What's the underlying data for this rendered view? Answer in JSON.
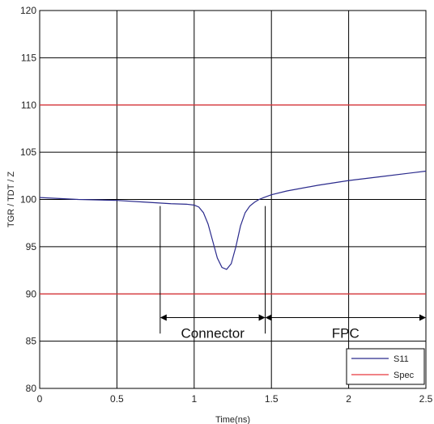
{
  "chart_data": {
    "type": "line",
    "title": "",
    "xlabel": "Time(ns)",
    "ylabel": "TGR / TDT / Z",
    "xlim": [
      0,
      2.5
    ],
    "ylim": [
      80,
      120
    ],
    "x_ticks": [
      "0",
      "0.5",
      "1",
      "1.5",
      "2",
      "2.5"
    ],
    "y_ticks": [
      "80",
      "85",
      "90",
      "95",
      "100",
      "105",
      "110",
      "115",
      "120"
    ],
    "grid": false,
    "legend_position": "bottom-right",
    "series": [
      {
        "name": "S11",
        "color": "#2a2a8c",
        "x": [
          0,
          0.25,
          0.5,
          0.7,
          0.85,
          0.95,
          1.0,
          1.03,
          1.06,
          1.09,
          1.12,
          1.15,
          1.18,
          1.21,
          1.24,
          1.27,
          1.3,
          1.33,
          1.36,
          1.39,
          1.42,
          1.45,
          1.5,
          1.6,
          1.8,
          2.0,
          2.2,
          2.5
        ],
        "y": [
          100.2,
          100.0,
          99.9,
          99.7,
          99.55,
          99.5,
          99.4,
          99.2,
          98.6,
          97.4,
          95.6,
          93.8,
          92.8,
          92.6,
          93.2,
          95.0,
          97.2,
          98.6,
          99.3,
          99.7,
          100.0,
          100.2,
          100.5,
          100.9,
          101.5,
          102.0,
          102.4,
          103.0
        ]
      },
      {
        "name": "Spec",
        "color": "#e8383d",
        "x": [
          0,
          2.5
        ],
        "y": [
          110,
          110
        ]
      },
      {
        "name": "Spec",
        "color": "#e8383d",
        "x": [
          0,
          2.5
        ],
        "y": [
          90,
          90
        ]
      }
    ],
    "vertical_lines_x": [
      0.5,
      1.0,
      1.5,
      2.0
    ],
    "annotations": [
      {
        "label": "Connector",
        "x_start": 0.78,
        "x_end": 1.46,
        "y": 87.5
      },
      {
        "label": "FPC",
        "x_start": 1.46,
        "x_end": 2.5,
        "y": 87.5
      }
    ],
    "marker_lines": [
      {
        "x": 0.78,
        "y_start": 85.8,
        "y_end": 99.3
      },
      {
        "x": 1.46,
        "y_start": 85.8,
        "y_end": 99.3
      }
    ]
  }
}
